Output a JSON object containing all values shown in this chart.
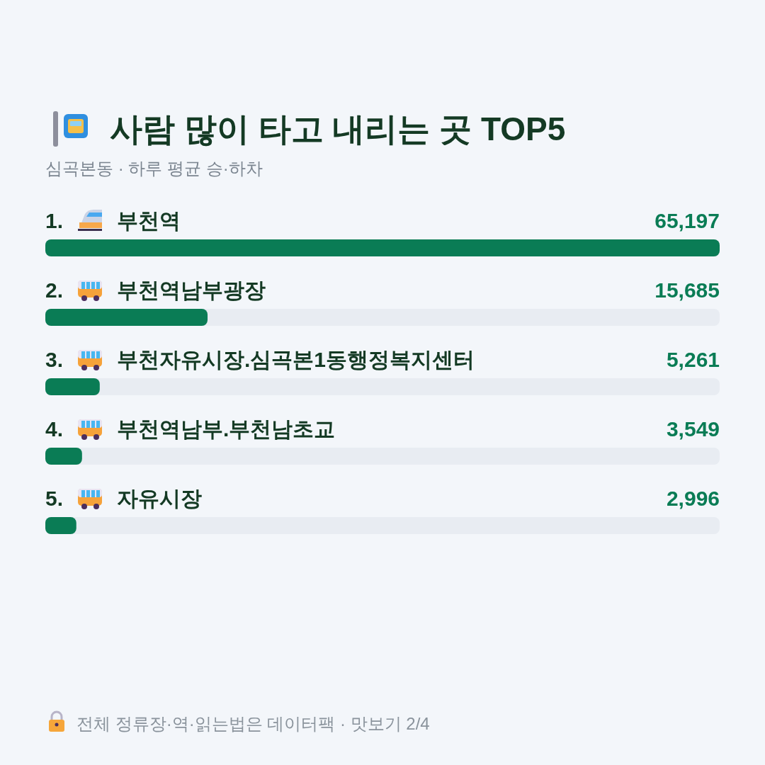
{
  "chart_data": {
    "type": "bar",
    "orientation": "horizontal",
    "title": "사람 많이 타고 내리는 곳 TOP5",
    "subtitle": "심곡본동 · 하루 평균 승·하차",
    "categories": [
      "1. 부천역",
      "2. 부천역남부광장",
      "3. 부천자유시장.심곡본1동행정복지센터",
      "4. 부천역남부.부천남초교",
      "5. 자유시장"
    ],
    "values": [
      65197,
      15685,
      5261,
      3549,
      2996
    ],
    "value_labels": [
      "65,197",
      "15,685",
      "5,261",
      "3,549",
      "2,996"
    ],
    "color": "#0a7c55",
    "annotations": [
      "전체 정류장·역·읽는법은 데이터팩 · 맛보기 2/4"
    ]
  }
}
